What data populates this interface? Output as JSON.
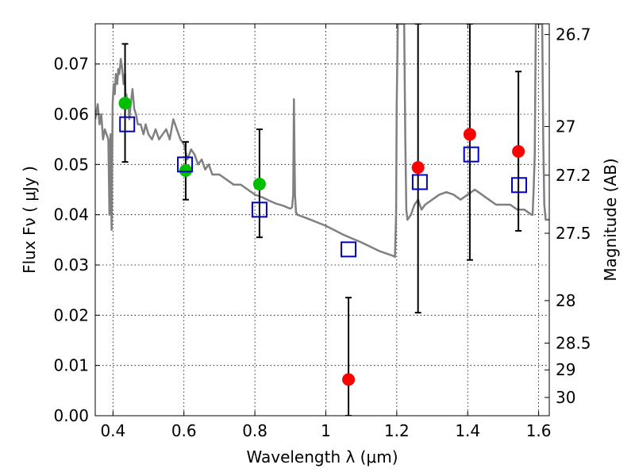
{
  "chart_data": {
    "type": "scatter",
    "title": "",
    "xlabel": "Wavelength  λ (μm)",
    "ylabel": "Flux  Fν  ( μJy )",
    "ylabel_right": "Magnitude (AB)",
    "xlim": [
      0.35,
      1.63
    ],
    "ylim": [
      0.0,
      0.078
    ],
    "grid": true,
    "x_ticks": [
      {
        "value": 0.4,
        "label": "0.4"
      },
      {
        "value": 0.6,
        "label": "0.6"
      },
      {
        "value": 0.8,
        "label": "0.8"
      },
      {
        "value": 1.0,
        "label": "1"
      },
      {
        "value": 1.2,
        "label": "1.2"
      },
      {
        "value": 1.4,
        "label": "1.4"
      },
      {
        "value": 1.6,
        "label": "1.6"
      }
    ],
    "y_ticks": [
      {
        "value": 0.0,
        "label": "0.00"
      },
      {
        "value": 0.01,
        "label": "0.01"
      },
      {
        "value": 0.02,
        "label": "0.02"
      },
      {
        "value": 0.03,
        "label": "0.03"
      },
      {
        "value": 0.04,
        "label": "0.04"
      },
      {
        "value": 0.05,
        "label": "0.05"
      },
      {
        "value": 0.06,
        "label": "0.06"
      },
      {
        "value": 0.07,
        "label": "0.07"
      }
    ],
    "right_ticks": [
      {
        "mag": 26.7,
        "label": "26.7"
      },
      {
        "mag": 27.0,
        "label": "27"
      },
      {
        "mag": 27.2,
        "label": "27.2"
      },
      {
        "mag": 27.5,
        "label": "27.5"
      },
      {
        "mag": 28.0,
        "label": "28"
      },
      {
        "mag": 28.5,
        "label": "28.5"
      },
      {
        "mag": 29.0,
        "label": "29"
      },
      {
        "mag": 30.0,
        "label": "30"
      }
    ],
    "series": [
      {
        "kind": "line",
        "color": "#808080",
        "x": [
          0.35,
          0.357,
          0.362,
          0.367,
          0.372,
          0.377,
          0.382,
          0.387,
          0.39,
          0.393,
          0.396,
          0.399,
          0.402,
          0.405,
          0.408,
          0.412,
          0.415,
          0.418,
          0.422,
          0.426,
          0.43,
          0.434,
          0.436,
          0.438,
          0.44,
          0.443,
          0.446,
          0.45,
          0.455,
          0.46,
          0.465,
          0.47,
          0.478,
          0.486,
          0.492,
          0.5,
          0.51,
          0.52,
          0.53,
          0.54,
          0.55,
          0.56,
          0.57,
          0.58,
          0.59,
          0.6,
          0.61,
          0.62,
          0.63,
          0.64,
          0.65,
          0.66,
          0.67,
          0.68,
          0.7,
          0.72,
          0.74,
          0.76,
          0.78,
          0.8,
          0.82,
          0.84,
          0.86,
          0.88,
          0.9,
          0.905,
          0.908,
          0.91,
          0.913,
          0.916,
          0.92,
          0.95,
          1.0,
          1.05,
          1.1,
          1.15,
          1.19,
          1.195,
          1.198,
          1.2,
          1.203,
          1.206,
          1.209,
          1.212,
          1.215,
          1.218,
          1.221,
          1.224,
          1.227,
          1.23,
          1.24,
          1.25,
          1.26,
          1.27,
          1.28,
          1.3,
          1.32,
          1.34,
          1.36,
          1.38,
          1.4,
          1.42,
          1.44,
          1.46,
          1.48,
          1.5,
          1.52,
          1.54,
          1.56,
          1.58,
          1.583,
          1.586,
          1.589,
          1.592,
          1.595,
          1.598,
          1.601,
          1.604,
          1.607,
          1.61,
          1.613,
          1.616,
          1.62,
          1.63
        ],
        "y": [
          0.059,
          0.062,
          0.058,
          0.06,
          0.055,
          0.057,
          0.056,
          0.055,
          0.04,
          0.056,
          0.037,
          0.062,
          0.066,
          0.064,
          0.068,
          0.066,
          0.069,
          0.068,
          0.071,
          0.069,
          0.066,
          0.068,
          0.061,
          0.064,
          0.062,
          0.063,
          0.059,
          0.062,
          0.065,
          0.061,
          0.06,
          0.058,
          0.058,
          0.056,
          0.058,
          0.056,
          0.055,
          0.057,
          0.055,
          0.056,
          0.057,
          0.055,
          0.059,
          0.057,
          0.055,
          0.054,
          0.051,
          0.053,
          0.052,
          0.05,
          0.051,
          0.049,
          0.05,
          0.048,
          0.048,
          0.047,
          0.046,
          0.046,
          0.045,
          0.044,
          0.0435,
          0.0428,
          0.0422,
          0.0418,
          0.0412,
          0.0415,
          0.044,
          0.063,
          0.044,
          0.0405,
          0.04,
          0.0392,
          0.0378,
          0.036,
          0.0345,
          0.0328,
          0.0318,
          0.0316,
          0.04,
          0.062,
          0.078,
          0.078,
          0.078,
          0.078,
          0.078,
          0.078,
          0.078,
          0.055,
          0.041,
          0.039,
          0.04,
          0.042,
          0.043,
          0.041,
          0.042,
          0.043,
          0.044,
          0.0445,
          0.044,
          0.043,
          0.044,
          0.045,
          0.044,
          0.043,
          0.042,
          0.042,
          0.042,
          0.041,
          0.041,
          0.04,
          0.04,
          0.045,
          0.052,
          0.078,
          0.078,
          0.078,
          0.078,
          0.078,
          0.078,
          0.078,
          0.055,
          0.042,
          0.039,
          0.039
        ]
      },
      {
        "kind": "errorbar",
        "color": "#000000",
        "points": [
          {
            "x": 0.434,
            "low": 0.0505,
            "high": 0.074
          },
          {
            "x": 0.605,
            "low": 0.043,
            "high": 0.0545
          },
          {
            "x": 0.813,
            "low": 0.0355,
            "high": 0.057
          },
          {
            "x": 1.064,
            "low": 0.0,
            "high": 0.0235
          },
          {
            "x": 1.26,
            "low": 0.0205,
            "high": 0.078
          },
          {
            "x": 1.406,
            "low": 0.031,
            "high": 0.078
          },
          {
            "x": 1.543,
            "low": 0.0368,
            "high": 0.0685
          }
        ]
      },
      {
        "kind": "circles",
        "color": "#00bf00",
        "x": [
          0.434,
          0.605,
          0.813
        ],
        "y": [
          0.0622,
          0.0488,
          0.0461
        ]
      },
      {
        "kind": "circles",
        "color": "#ff0000",
        "x": [
          1.064,
          1.26,
          1.406,
          1.543
        ],
        "y": [
          0.0072,
          0.0494,
          0.056,
          0.0526
        ]
      },
      {
        "kind": "squares",
        "color": "#0000bf",
        "x": [
          0.44,
          0.603,
          0.813,
          1.064,
          1.265,
          1.41,
          1.545
        ],
        "y": [
          0.058,
          0.05,
          0.041,
          0.0331,
          0.0465,
          0.052,
          0.0459
        ]
      }
    ]
  }
}
